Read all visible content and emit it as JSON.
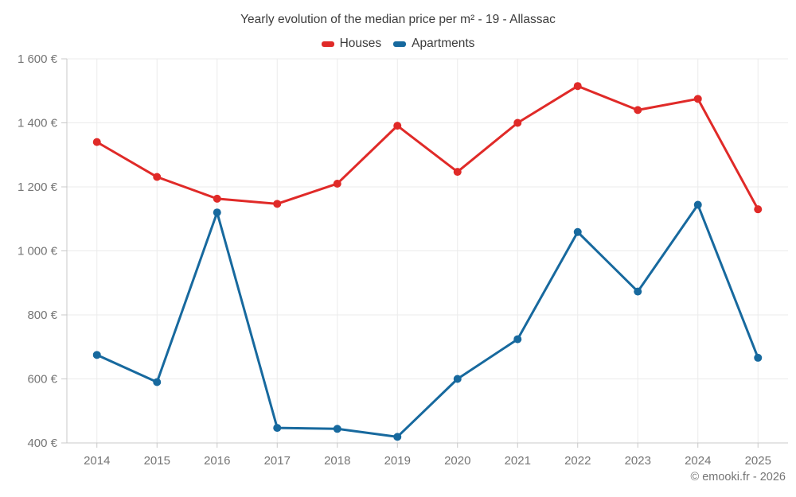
{
  "title": "Yearly evolution of the median price per m² - 19 - Allassac",
  "watermark": "© emooki.fr - 2026",
  "chart_data": {
    "type": "line",
    "title": "Yearly evolution of the median price per m² - 19 - Allassac",
    "x": [
      "2014",
      "2015",
      "2016",
      "2017",
      "2018",
      "2019",
      "2020",
      "2021",
      "2022",
      "2023",
      "2024",
      "2025"
    ],
    "series": [
      {
        "name": "Houses",
        "color": "#e02a28",
        "values": [
          1340,
          1231,
          1163,
          1147,
          1210,
          1391,
          1247,
          1400,
          1515,
          1440,
          1475,
          1130
        ]
      },
      {
        "name": "Apartments",
        "color": "#17699e",
        "values": [
          675,
          590,
          1120,
          447,
          444,
          419,
          600,
          724,
          1059,
          873,
          1144,
          666
        ]
      }
    ],
    "ylim": [
      400,
      1600
    ],
    "ytick_step": 200,
    "y_unit": "€",
    "grid": true,
    "legend_position": "top",
    "marker_radius": 5,
    "line_width": 3
  },
  "style_colors": {
    "axis": "#c8c8c8",
    "grid": "#ebebeb",
    "labels": "#757575",
    "title": "#3c3c3c"
  }
}
